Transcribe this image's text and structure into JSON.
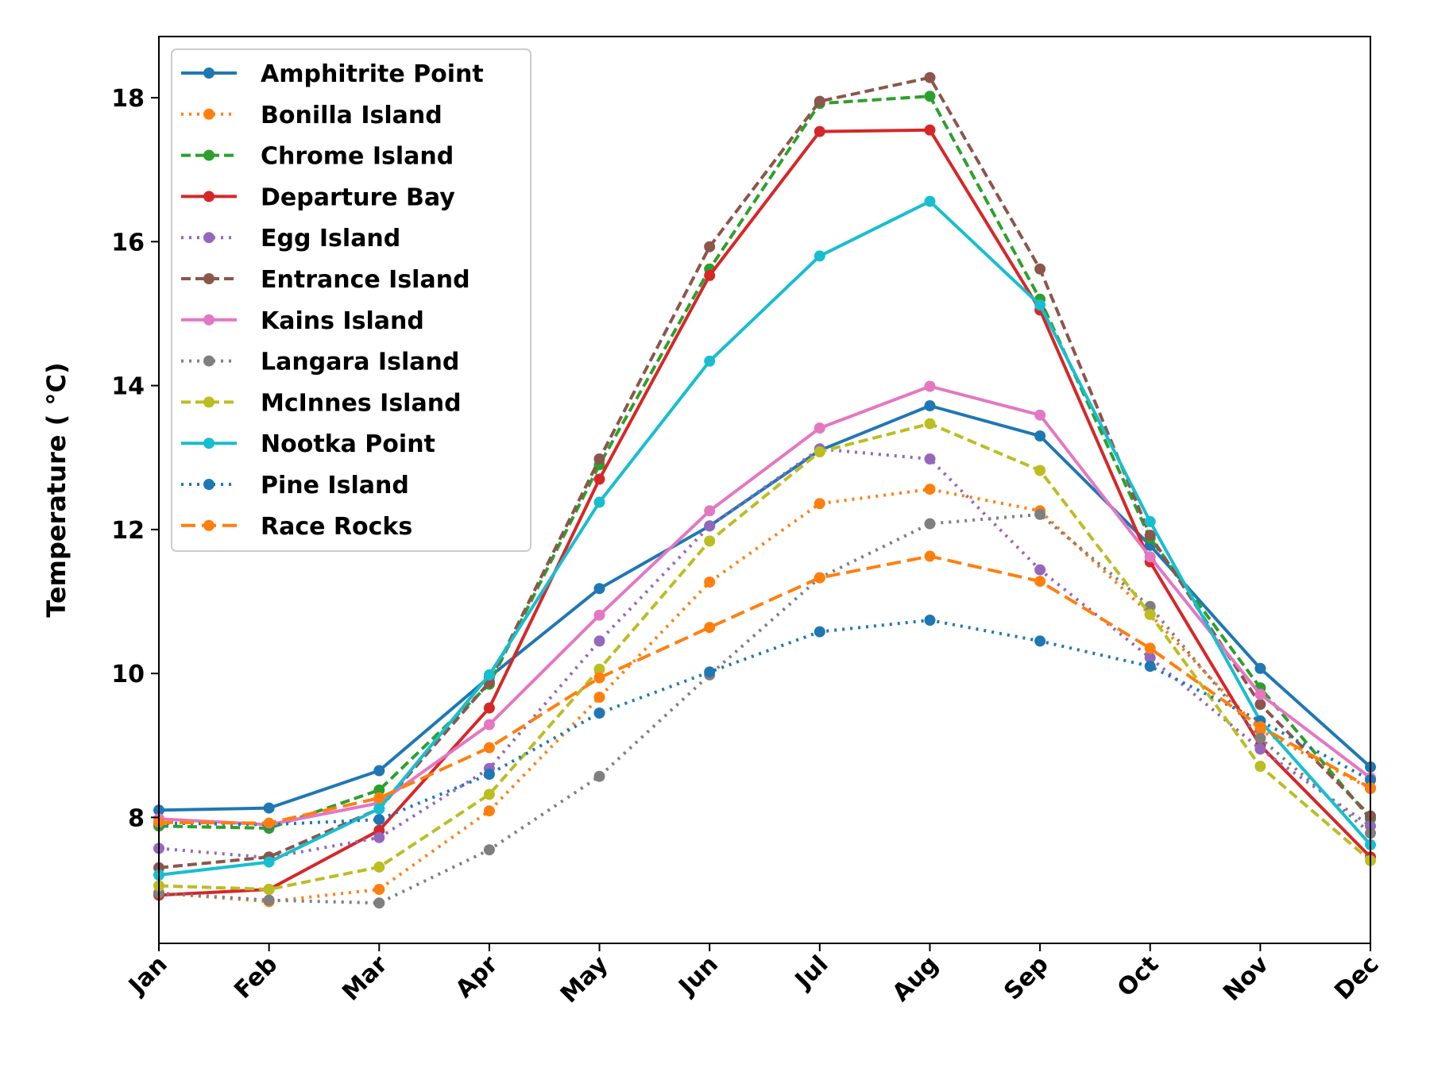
{
  "chart_data": {
    "type": "line",
    "ylabel": "Temperature ( °C)",
    "xlabel": "",
    "title": "",
    "categories": [
      "Jan",
      "Feb",
      "Mar",
      "Apr",
      "May",
      "Jun",
      "Jul",
      "Aug",
      "Sep",
      "Oct",
      "Nov",
      "Dec"
    ],
    "ylim": [
      6.25,
      18.85
    ],
    "yticks": [
      "8",
      "10",
      "12",
      "14",
      "16",
      "18"
    ],
    "legend_position": "top-left",
    "grid": false,
    "series": [
      {
        "name": "Amphitrite Point",
        "color": "#1f77b4",
        "dash": "solid",
        "values": [
          8.1,
          8.13,
          8.65,
          9.95,
          11.18,
          12.05,
          13.1,
          13.72,
          13.3,
          11.78,
          10.07,
          8.7
        ]
      },
      {
        "name": "Bonilla Island",
        "color": "#ff7f0e",
        "dash": "dotted",
        "values": [
          6.95,
          6.83,
          7.0,
          8.09,
          9.67,
          11.27,
          12.36,
          12.56,
          12.26,
          10.82,
          9.21,
          8.4
        ]
      },
      {
        "name": "Chrome Island",
        "color": "#2ca02c",
        "dash": "dashed",
        "values": [
          7.88,
          7.85,
          8.38,
          9.85,
          12.9,
          15.62,
          17.92,
          18.02,
          15.2,
          11.88,
          9.8,
          7.98
        ]
      },
      {
        "name": "Departure Bay",
        "color": "#d62728",
        "dash": "solid",
        "values": [
          6.92,
          7.0,
          7.82,
          9.52,
          12.7,
          15.53,
          17.53,
          17.55,
          15.05,
          11.55,
          9.0,
          7.45
        ]
      },
      {
        "name": "Egg Island",
        "color": "#9467bd",
        "dash": "dotted",
        "values": [
          7.57,
          7.44,
          7.72,
          8.68,
          10.45,
          12.05,
          13.12,
          12.98,
          11.44,
          10.22,
          8.95,
          7.88
        ]
      },
      {
        "name": "Entrance Island",
        "color": "#8c564b",
        "dash": "dashed",
        "values": [
          7.3,
          7.45,
          8.12,
          9.88,
          12.98,
          15.93,
          17.95,
          18.28,
          15.62,
          11.92,
          9.57,
          8.02
        ]
      },
      {
        "name": "Kains Island",
        "color": "#e377c2",
        "dash": "solid",
        "values": [
          7.98,
          7.9,
          8.2,
          9.29,
          10.81,
          12.26,
          13.41,
          13.99,
          13.59,
          11.62,
          9.71,
          8.55
        ]
      },
      {
        "name": "Langara Island",
        "color": "#7f7f7f",
        "dash": "dotted",
        "values": [
          6.95,
          6.85,
          6.81,
          7.55,
          8.57,
          9.98,
          11.33,
          12.08,
          12.21,
          10.93,
          9.1,
          7.78
        ]
      },
      {
        "name": "McInnes Island",
        "color": "#bcbd22",
        "dash": "dashed",
        "values": [
          7.05,
          7.0,
          7.31,
          8.32,
          10.06,
          11.84,
          13.08,
          13.47,
          12.82,
          10.82,
          8.71,
          7.4
        ]
      },
      {
        "name": "Nootka Point",
        "color": "#17becf",
        "dash": "solid",
        "values": [
          7.2,
          7.38,
          8.12,
          9.98,
          12.38,
          14.34,
          15.8,
          16.56,
          15.12,
          12.11,
          9.34,
          7.62
        ]
      },
      {
        "name": "Pine Island",
        "color": "#1f77b4",
        "dash": "dotted",
        "values": [
          7.92,
          7.9,
          7.97,
          8.6,
          9.45,
          10.02,
          10.58,
          10.74,
          10.45,
          10.1,
          9.34,
          8.52
        ]
      },
      {
        "name": "Race Rocks",
        "color": "#ff7f0e",
        "dash": "longdash",
        "values": [
          7.93,
          7.92,
          8.27,
          8.97,
          9.94,
          10.64,
          11.33,
          11.63,
          11.28,
          10.35,
          9.26,
          8.41
        ]
      }
    ]
  }
}
